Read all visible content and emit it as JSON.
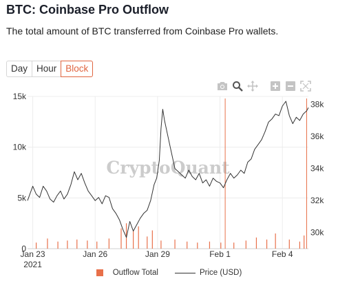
{
  "header": {
    "title": "BTC: Coinbase Pro Outflow",
    "subtitle": "The total amount of BTC transferred from Coinbase Pro wallets."
  },
  "range_buttons": [
    {
      "label": "Day",
      "active": false
    },
    {
      "label": "Hour",
      "active": false
    },
    {
      "label": "Block",
      "active": true
    }
  ],
  "modebar": [
    "camera-icon",
    "zoom-icon",
    "pan-icon",
    "zoom-in-icon",
    "zoom-out-icon",
    "autoscale-icon"
  ],
  "watermark": "CryptoQuant",
  "colors": {
    "outflow": "#e8704a",
    "price": "#333333",
    "active": "#e0643f",
    "grid": "#ececec"
  },
  "chart_data": {
    "type": "bar+line",
    "x_type": "date",
    "x_range": [
      "2021-01-22T18:00",
      "2021-02-05T06:00"
    ],
    "x_ticks": [
      {
        "date": "2021-01-23",
        "label": "Jan 23",
        "sublabel": "2021"
      },
      {
        "date": "2021-01-26",
        "label": "Jan 26",
        "sublabel": ""
      },
      {
        "date": "2021-01-29",
        "label": "Jan 29",
        "sublabel": ""
      },
      {
        "date": "2021-02-01",
        "label": "Feb 1",
        "sublabel": ""
      },
      {
        "date": "2021-02-04",
        "label": "Feb 4",
        "sublabel": ""
      }
    ],
    "y_left": {
      "range": [
        0,
        15000
      ],
      "ticks": [
        {
          "v": 0,
          "label": "0"
        },
        {
          "v": 5000,
          "label": "5k"
        },
        {
          "v": 10000,
          "label": "10k"
        },
        {
          "v": 15000,
          "label": "15k"
        }
      ]
    },
    "y_right": {
      "range": [
        29000,
        38500
      ],
      "ticks": [
        {
          "v": 30000,
          "label": "30k"
        },
        {
          "v": 32000,
          "label": "32k"
        },
        {
          "v": 34000,
          "label": "34k"
        },
        {
          "v": 36000,
          "label": "36k"
        },
        {
          "v": 38000,
          "label": "38k"
        }
      ]
    },
    "series": [
      {
        "name": "Outflow Total",
        "axis": "left",
        "kind": "bar",
        "points": [
          [
            "2021-01-23T04:00",
            600
          ],
          [
            "2021-01-23T17:00",
            1000
          ],
          [
            "2021-01-24T05:00",
            700
          ],
          [
            "2021-01-24T16:00",
            800
          ],
          [
            "2021-01-25T03:00",
            900
          ],
          [
            "2021-01-25T15:00",
            800
          ],
          [
            "2021-01-26T02:00",
            700
          ],
          [
            "2021-01-26T16:00",
            1000
          ],
          [
            "2021-01-27T06:00",
            2000
          ],
          [
            "2021-01-27T12:00",
            2500
          ],
          [
            "2021-01-27T20:00",
            1800
          ],
          [
            "2021-01-28T02:00",
            2200
          ],
          [
            "2021-01-28T12:00",
            1200
          ],
          [
            "2021-01-28T18:00",
            1800
          ],
          [
            "2021-01-29T04:00",
            800
          ],
          [
            "2021-01-29T20:00",
            900
          ],
          [
            "2021-01-30T10:00",
            700
          ],
          [
            "2021-01-30T22:00",
            600
          ],
          [
            "2021-01-31T12:00",
            700
          ],
          [
            "2021-02-01T01:00",
            600
          ],
          [
            "2021-02-01T06:00",
            14800
          ],
          [
            "2021-02-01T16:00",
            600
          ],
          [
            "2021-02-02T06:00",
            800
          ],
          [
            "2021-02-02T18:00",
            1100
          ],
          [
            "2021-02-03T06:00",
            900
          ],
          [
            "2021-02-03T16:00",
            1500
          ],
          [
            "2021-02-04T08:00",
            900
          ],
          [
            "2021-02-04T20:00",
            700
          ],
          [
            "2021-02-05T01:00",
            1300
          ],
          [
            "2021-02-05T04:00",
            14800
          ]
        ]
      },
      {
        "name": "Price (USD)",
        "axis": "right",
        "kind": "line",
        "points": [
          [
            "2021-01-22T18:00",
            32000
          ],
          [
            "2021-01-23T00:00",
            32900
          ],
          [
            "2021-01-23T04:00",
            32400
          ],
          [
            "2021-01-23T08:00",
            32200
          ],
          [
            "2021-01-23T12:00",
            32900
          ],
          [
            "2021-01-23T16:00",
            32600
          ],
          [
            "2021-01-23T20:00",
            32100
          ],
          [
            "2021-01-24T00:00",
            31900
          ],
          [
            "2021-01-24T04:00",
            32300
          ],
          [
            "2021-01-24T08:00",
            32600
          ],
          [
            "2021-01-24T12:00",
            32100
          ],
          [
            "2021-01-24T16:00",
            32400
          ],
          [
            "2021-01-24T20:00",
            33000
          ],
          [
            "2021-01-25T00:00",
            33800
          ],
          [
            "2021-01-25T04:00",
            33300
          ],
          [
            "2021-01-25T08:00",
            33700
          ],
          [
            "2021-01-25T12:00",
            33100
          ],
          [
            "2021-01-25T16:00",
            32600
          ],
          [
            "2021-01-25T20:00",
            32300
          ],
          [
            "2021-01-26T00:00",
            32000
          ],
          [
            "2021-01-26T04:00",
            32200
          ],
          [
            "2021-01-26T08:00",
            31800
          ],
          [
            "2021-01-26T12:00",
            32300
          ],
          [
            "2021-01-26T16:00",
            32200
          ],
          [
            "2021-01-26T20:00",
            31500
          ],
          [
            "2021-01-27T00:00",
            31200
          ],
          [
            "2021-01-27T04:00",
            30800
          ],
          [
            "2021-01-27T08:00",
            30200
          ],
          [
            "2021-01-27T12:00",
            29700
          ],
          [
            "2021-01-27T16:00",
            30700
          ],
          [
            "2021-01-27T20:00",
            30100
          ],
          [
            "2021-01-28T00:00",
            30500
          ],
          [
            "2021-01-28T04:00",
            30900
          ],
          [
            "2021-01-28T08:00",
            31200
          ],
          [
            "2021-01-28T12:00",
            31400
          ],
          [
            "2021-01-28T16:00",
            32000
          ],
          [
            "2021-01-28T20:00",
            33000
          ],
          [
            "2021-01-28T23:00",
            33400
          ],
          [
            "2021-01-29T02:00",
            34500
          ],
          [
            "2021-01-29T04:00",
            36500
          ],
          [
            "2021-01-29T06:00",
            37700
          ],
          [
            "2021-01-29T08:00",
            37000
          ],
          [
            "2021-01-29T12:00",
            36000
          ],
          [
            "2021-01-29T16:00",
            35000
          ],
          [
            "2021-01-29T20:00",
            34000
          ],
          [
            "2021-01-30T00:00",
            33800
          ],
          [
            "2021-01-30T04:00",
            33600
          ],
          [
            "2021-01-30T08:00",
            33400
          ],
          [
            "2021-01-30T12:00",
            33900
          ],
          [
            "2021-01-30T16:00",
            33500
          ],
          [
            "2021-01-30T20:00",
            33300
          ],
          [
            "2021-01-31T00:00",
            33700
          ],
          [
            "2021-01-31T04:00",
            33100
          ],
          [
            "2021-01-31T08:00",
            33300
          ],
          [
            "2021-01-31T12:00",
            32900
          ],
          [
            "2021-01-31T16:00",
            33400
          ],
          [
            "2021-01-31T20:00",
            33200
          ],
          [
            "2021-02-01T00:00",
            33100
          ],
          [
            "2021-02-01T04:00",
            32800
          ],
          [
            "2021-02-01T08:00",
            33300
          ],
          [
            "2021-02-01T12:00",
            33700
          ],
          [
            "2021-02-01T16:00",
            33400
          ],
          [
            "2021-02-01T20:00",
            33600
          ],
          [
            "2021-02-02T00:00",
            33900
          ],
          [
            "2021-02-02T04:00",
            33700
          ],
          [
            "2021-02-02T08:00",
            34400
          ],
          [
            "2021-02-02T12:00",
            34600
          ],
          [
            "2021-02-02T16:00",
            35200
          ],
          [
            "2021-02-02T20:00",
            35500
          ],
          [
            "2021-02-03T00:00",
            35800
          ],
          [
            "2021-02-03T04:00",
            36300
          ],
          [
            "2021-02-03T08:00",
            36900
          ],
          [
            "2021-02-03T12:00",
            37100
          ],
          [
            "2021-02-03T16:00",
            37400
          ],
          [
            "2021-02-03T20:00",
            37300
          ],
          [
            "2021-02-04T00:00",
            37900
          ],
          [
            "2021-02-04T04:00",
            38200
          ],
          [
            "2021-02-04T08:00",
            37300
          ],
          [
            "2021-02-04T12:00",
            36800
          ],
          [
            "2021-02-04T16:00",
            37200
          ],
          [
            "2021-02-04T20:00",
            37000
          ],
          [
            "2021-02-05T00:00",
            37400
          ],
          [
            "2021-02-05T04:00",
            37600
          ],
          [
            "2021-02-05T06:00",
            37800
          ]
        ]
      }
    ],
    "grid": true,
    "legend_position": "bottom"
  }
}
